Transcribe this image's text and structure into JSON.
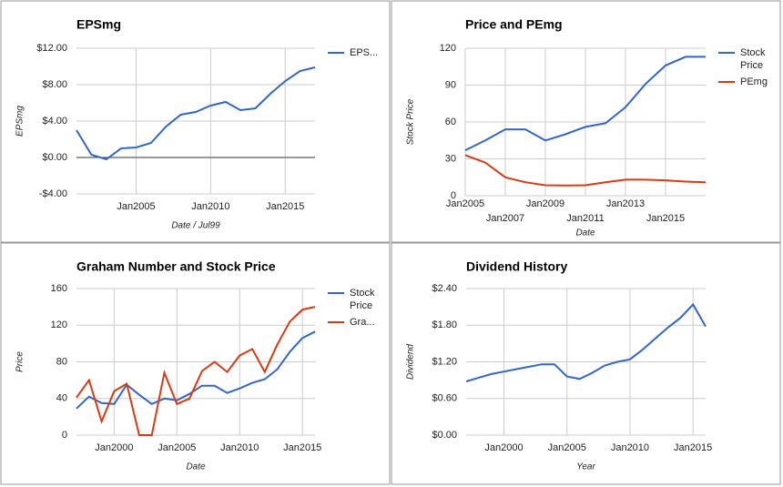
{
  "chart_data": [
    {
      "type": "line",
      "title": "EPSmg",
      "x_label": "Date / Jul99",
      "y_label": "EPSmg",
      "x": [
        2001,
        2002,
        2003,
        2004,
        2005,
        2006,
        2007,
        2008,
        2009,
        2010,
        2011,
        2012,
        2013,
        2014,
        2015,
        2016,
        2017
      ],
      "series": [
        {
          "name": "EPS...",
          "color": "#3366cc",
          "values": [
            3.0,
            0.3,
            -0.2,
            1.0,
            1.1,
            1.6,
            3.4,
            4.7,
            5.0,
            5.7,
            6.1,
            5.2,
            5.4,
            7.0,
            8.4,
            9.5,
            9.9
          ]
        }
      ],
      "xlim": [
        2001,
        2017
      ],
      "xticks": [
        {
          "value": 2005,
          "label": "Jan2005"
        },
        {
          "value": 2010,
          "label": "Jan2010"
        },
        {
          "value": 2015,
          "label": "Jan2015"
        }
      ],
      "ylim": [
        -4,
        12
      ],
      "yticks": [
        {
          "value": -4,
          "label": "-$4.00"
        },
        {
          "value": 0,
          "label": "$0.00"
        },
        {
          "value": 4,
          "label": "$4.00"
        },
        {
          "value": 8,
          "label": "$8.00"
        },
        {
          "value": 12,
          "label": "$12.00"
        }
      ],
      "grid": true,
      "legend": "right"
    },
    {
      "type": "line",
      "title": "Price and PEmg",
      "x_label": "Date",
      "y_label": "Stock Price",
      "x": [
        2005,
        2006,
        2007,
        2008,
        2009,
        2010,
        2011,
        2012,
        2013,
        2014,
        2015,
        2016,
        2017
      ],
      "series": [
        {
          "name": "Stock Price",
          "color": "#3366cc",
          "values": [
            37,
            45,
            54,
            54,
            45,
            50,
            56,
            59,
            72,
            91,
            106,
            113,
            113
          ]
        },
        {
          "name": "PEmg",
          "color": "#dc3912",
          "values": [
            33,
            27,
            15,
            11,
            8.5,
            8.3,
            8.5,
            11,
            13,
            13,
            12.5,
            11.5,
            11
          ]
        }
      ],
      "xlim": [
        2005,
        2017
      ],
      "xticks": [
        {
          "value": 2005,
          "label": "Jan2005"
        },
        {
          "value": 2007,
          "label": "Jan2007"
        },
        {
          "value": 2009,
          "label": "Jan2009"
        },
        {
          "value": 2011,
          "label": "Jan2011"
        },
        {
          "value": 2013,
          "label": "Jan2013"
        },
        {
          "value": 2015,
          "label": "Jan2015"
        }
      ],
      "ylim": [
        0,
        120
      ],
      "yticks": [
        0,
        30,
        60,
        90,
        120
      ],
      "grid": true,
      "legend": "right"
    },
    {
      "type": "line",
      "title": "Graham Number and Stock Price",
      "x_label": "Date",
      "y_label": "Price",
      "x": [
        1997,
        1998,
        1999,
        2000,
        2001,
        2002,
        2003,
        2004,
        2005,
        2006,
        2007,
        2008,
        2009,
        2010,
        2011,
        2012,
        2013,
        2014,
        2015,
        2016
      ],
      "series": [
        {
          "name": "Stock Price",
          "color": "#3366cc",
          "values": [
            29,
            42,
            35,
            34,
            55,
            44,
            34,
            40,
            38,
            45,
            54,
            54,
            46,
            51,
            57,
            61,
            72,
            91,
            106,
            113
          ]
        },
        {
          "name": "Gra...",
          "color": "#dc3912",
          "values": [
            41,
            60,
            15,
            48,
            56,
            0,
            0,
            68,
            34,
            40,
            70,
            80,
            69,
            87,
            94,
            69,
            99,
            124,
            137,
            140
          ]
        }
      ],
      "xlim": [
        1997,
        2016
      ],
      "xticks": [
        {
          "value": 2000,
          "label": "Jan2000"
        },
        {
          "value": 2005,
          "label": "Jan2005"
        },
        {
          "value": 2010,
          "label": "Jan2010"
        },
        {
          "value": 2015,
          "label": "Jan2015"
        }
      ],
      "ylim": [
        0,
        160
      ],
      "yticks": [
        0,
        40,
        80,
        120,
        160
      ],
      "grid": true,
      "legend": "right"
    },
    {
      "type": "line",
      "title": "Dividend History",
      "x_label": "Year",
      "y_label": "Dividend",
      "x": [
        1997,
        1998,
        1999,
        2000,
        2001,
        2002,
        2003,
        2004,
        2005,
        2006,
        2007,
        2008,
        2009,
        2010,
        2011,
        2012,
        2013,
        2014,
        2015,
        2016
      ],
      "series": [
        {
          "name": "Dividend",
          "color": "#3366cc",
          "values": [
            0.88,
            0.94,
            1.0,
            1.04,
            1.08,
            1.12,
            1.16,
            1.16,
            0.96,
            0.92,
            1.02,
            1.14,
            1.2,
            1.24,
            1.4,
            1.58,
            1.76,
            1.92,
            2.14,
            1.78
          ]
        }
      ],
      "xlim": [
        1997,
        2016
      ],
      "xticks": [
        {
          "value": 2000,
          "label": "Jan2000"
        },
        {
          "value": 2005,
          "label": "Jan2005"
        },
        {
          "value": 2010,
          "label": "Jan2010"
        },
        {
          "value": 2015,
          "label": "Jan2015"
        }
      ],
      "ylim": [
        0,
        2.4
      ],
      "yticks": [
        {
          "value": 0,
          "label": "$0.00"
        },
        {
          "value": 0.6,
          "label": "$0.60"
        },
        {
          "value": 1.2,
          "label": "$1.20"
        },
        {
          "value": 1.8,
          "label": "$1.80"
        },
        {
          "value": 2.4,
          "label": "$2.40"
        }
      ],
      "grid": true
    }
  ]
}
